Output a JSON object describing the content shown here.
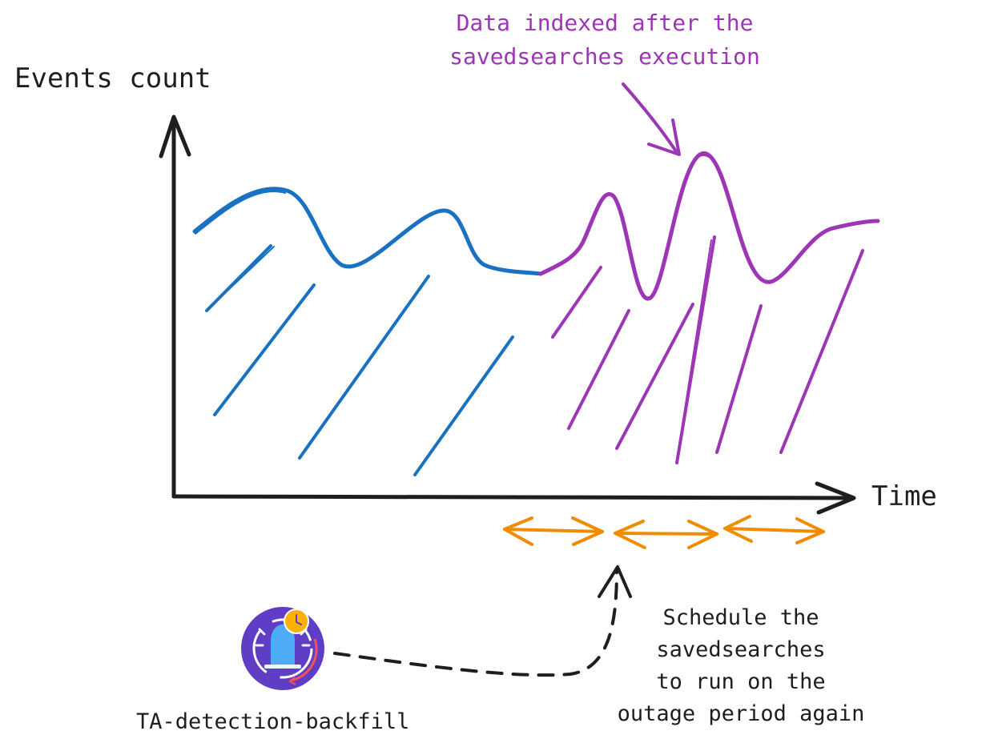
{
  "axes": {
    "y_label": "Events count",
    "x_label": "Time"
  },
  "annotations": {
    "late_data": [
      "Data indexed after the",
      "savedsearches execution"
    ],
    "schedule": [
      "Schedule the",
      "savedsearches",
      "to run on the",
      "outage period again"
    ]
  },
  "tool": {
    "name": "TA-detection-backfill",
    "icon": "bell-clock-icon"
  },
  "colors": {
    "ink": "#1e1e1e",
    "indexed_series": "#1971c2",
    "late_series": "#9c36b5",
    "outage_windows": "#f08c00",
    "icon_bg": "#5f3dc4"
  }
}
